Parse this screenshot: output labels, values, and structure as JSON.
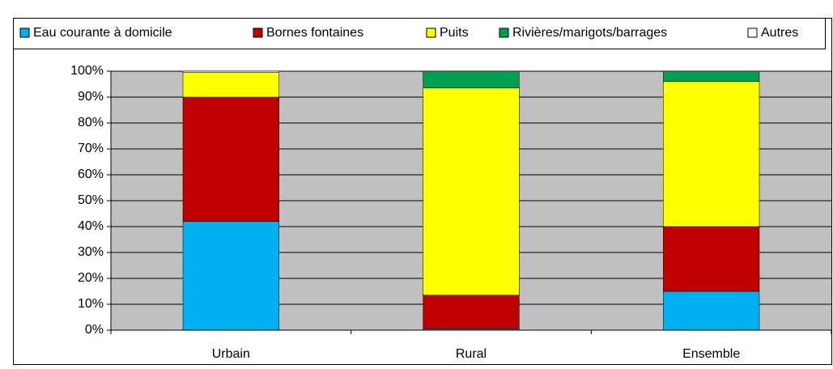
{
  "chart_data": {
    "type": "stacked_bar",
    "categories": [
      "Urbain",
      "Rural",
      "Ensemble"
    ],
    "series": [
      {
        "name": "Eau courante à domicile",
        "color": "#00b0f0",
        "values": [
          42,
          0.5,
          15
        ]
      },
      {
        "name": "Bornes fontaines",
        "color": "#c00000",
        "values": [
          48,
          13,
          25
        ]
      },
      {
        "name": "Puits",
        "color": "#ffff00",
        "values": [
          9.5,
          80,
          56
        ]
      },
      {
        "name": "Rivières/marigots/barrages",
        "color": "#00a050",
        "values": [
          0,
          6.5,
          4
        ]
      },
      {
        "name": "Autres",
        "color": "#ffffff",
        "values": [
          0.5,
          0,
          0
        ]
      }
    ],
    "ylim": [
      0,
      100
    ],
    "yticks": [
      {
        "value": 0,
        "label": "0%"
      },
      {
        "value": 10,
        "label": "10%"
      },
      {
        "value": 20,
        "label": "20%"
      },
      {
        "value": 30,
        "label": "30%"
      },
      {
        "value": 40,
        "label": "40%"
      },
      {
        "value": 50,
        "label": "50%"
      },
      {
        "value": 60,
        "label": "60%"
      },
      {
        "value": 70,
        "label": "70%"
      },
      {
        "value": 80,
        "label": "80%"
      },
      {
        "value": 90,
        "label": "90%"
      },
      {
        "value": 100,
        "label": "100%"
      }
    ],
    "grid": true
  }
}
